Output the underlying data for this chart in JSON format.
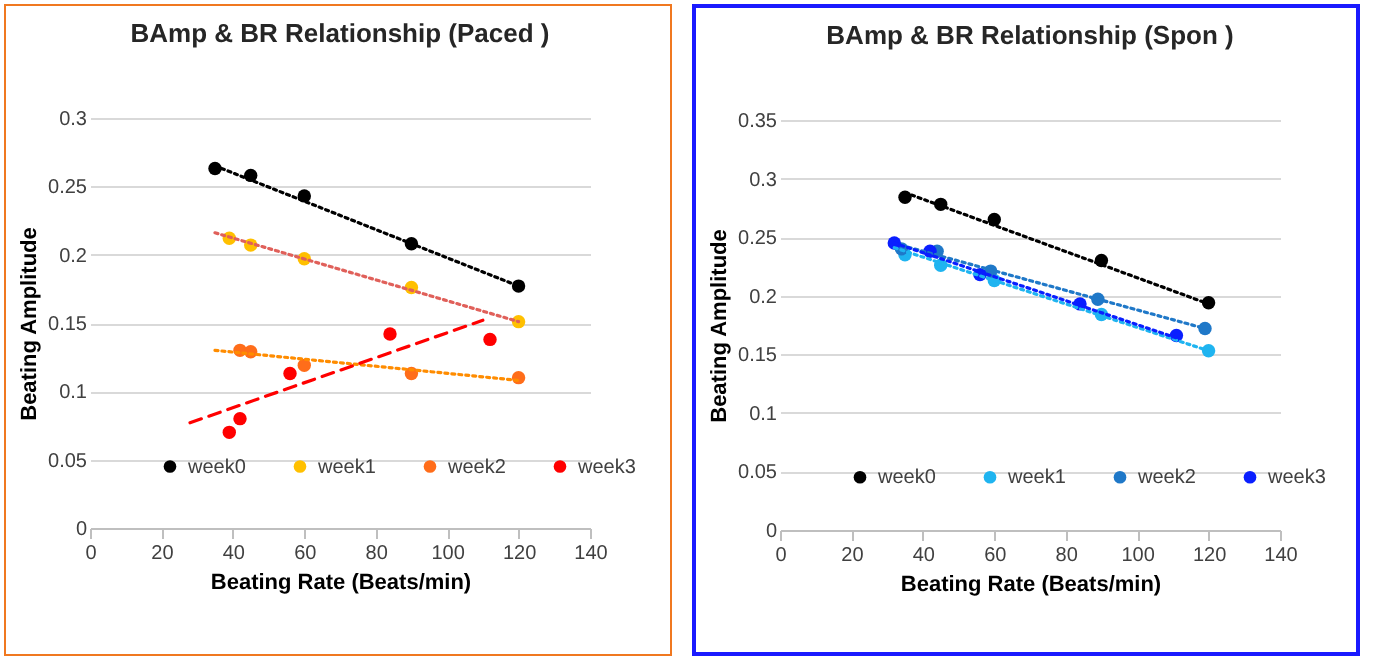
{
  "chart_data": [
    {
      "type": "scatter",
      "title": "BAmp & BR Relationship (Paced )",
      "xlabel": "Beating Rate (Beats/min)",
      "ylabel": "Beating Amplitude",
      "xlim": [
        0,
        140
      ],
      "xticks": [
        0,
        20,
        40,
        60,
        80,
        100,
        120,
        140
      ],
      "ylim": [
        0,
        0.3
      ],
      "yticks": [
        0,
        0.05,
        0.1,
        0.15,
        0.2,
        0.25,
        0.3
      ],
      "grid": "y",
      "legend": "bottom",
      "marker": "circle",
      "series": [
        {
          "name": "week0",
          "color": "#000000",
          "x": [
            35,
            45,
            60,
            90,
            120
          ],
          "values": [
            0.263,
            0.258,
            0.243,
            0.208,
            0.177
          ]
        },
        {
          "name": "week1",
          "color": "#ffc000",
          "x": [
            39,
            45,
            60,
            90,
            120
          ],
          "values": [
            0.212,
            0.207,
            0.197,
            0.176,
            0.151
          ]
        },
        {
          "name": "week2",
          "color": "#ff6d1a",
          "x": [
            42,
            45,
            60,
            90,
            120
          ],
          "values": [
            0.13,
            0.129,
            0.119,
            0.113,
            0.11
          ]
        },
        {
          "name": "week3",
          "color": "#ff0000",
          "x": [
            39,
            42,
            56,
            84,
            112
          ],
          "values": [
            0.07,
            0.08,
            0.113,
            0.142,
            0.138
          ]
        },
        {
          "type": "line",
          "color": "#000000",
          "line_style": "dotted",
          "marker": "none",
          "x": [
            35,
            120
          ],
          "values": [
            0.265,
            0.177
          ]
        },
        {
          "type": "line",
          "color": "#e0605a",
          "line_style": "dotted",
          "marker": "none",
          "x": [
            35,
            120
          ],
          "values": [
            0.216,
            0.151
          ]
        },
        {
          "type": "line",
          "color": "#ff8c00",
          "line_style": "dotted",
          "marker": "none",
          "x": [
            35,
            120
          ],
          "values": [
            0.13,
            0.108
          ]
        },
        {
          "type": "line",
          "color": "#ff0000",
          "line_style": "dashed",
          "marker": "none",
          "x": [
            28,
            110
          ],
          "values": [
            0.077,
            0.152
          ]
        }
      ]
    },
    {
      "type": "scatter",
      "title": "BAmp & BR Relationship (Spon )",
      "xlabel": "Beating Rate (Beats/min)",
      "ylabel": "Beating Amplitude",
      "xlim": [
        0,
        140
      ],
      "xticks": [
        0,
        20,
        40,
        60,
        80,
        100,
        120,
        140
      ],
      "ylim": [
        0,
        0.35
      ],
      "yticks": [
        0,
        0.05,
        0.1,
        0.15,
        0.2,
        0.25,
        0.3,
        0.35
      ],
      "grid": "y",
      "legend": "bottom",
      "marker": "circle",
      "series": [
        {
          "name": "week0",
          "color": "#000000",
          "x": [
            35,
            45,
            60,
            90,
            120
          ],
          "values": [
            0.284,
            0.278,
            0.265,
            0.23,
            0.194
          ]
        },
        {
          "name": "week1",
          "color": "#1fb4f0",
          "x": [
            35,
            45,
            60,
            90,
            120
          ],
          "values": [
            0.235,
            0.226,
            0.213,
            0.184,
            0.153
          ]
        },
        {
          "name": "week2",
          "color": "#1f78c8",
          "x": [
            34,
            44,
            59,
            89,
            119
          ],
          "values": [
            0.24,
            0.238,
            0.221,
            0.197,
            0.172
          ]
        },
        {
          "name": "week3",
          "color": "#0a1fff",
          "x": [
            32,
            42,
            56,
            84,
            111
          ],
          "values": [
            0.245,
            0.238,
            0.218,
            0.193,
            0.166
          ]
        },
        {
          "type": "line",
          "color": "#000000",
          "line_style": "dotted",
          "marker": "none",
          "x": [
            35,
            120
          ],
          "values": [
            0.288,
            0.193
          ]
        },
        {
          "type": "line",
          "color": "#1fb4f0",
          "line_style": "dotted",
          "marker": "none",
          "x": [
            32,
            120
          ],
          "values": [
            0.241,
            0.153
          ]
        },
        {
          "type": "line",
          "color": "#1f78c8",
          "line_style": "dotted",
          "marker": "none",
          "x": [
            34,
            119
          ],
          "values": [
            0.243,
            0.172
          ]
        },
        {
          "type": "line",
          "color": "#0a1fff",
          "line_style": "dotted",
          "marker": "none",
          "x": [
            32,
            111
          ],
          "values": [
            0.245,
            0.164
          ]
        }
      ]
    }
  ]
}
